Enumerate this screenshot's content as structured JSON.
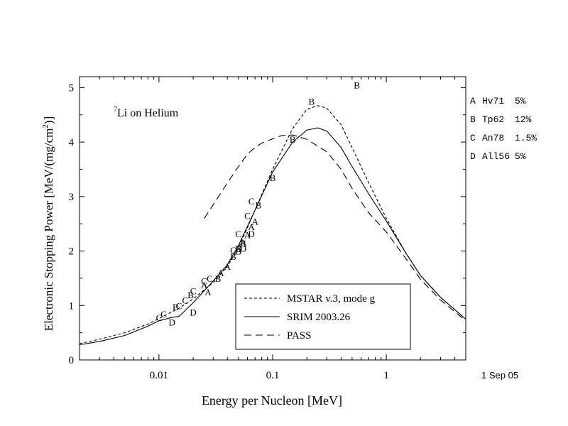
{
  "chart_data": {
    "type": "line",
    "title_parts": {
      "superscript": "7",
      "text": "Li on Helium"
    },
    "xlabel": "Energy per Nucleon [MeV]",
    "ylabel_parts": {
      "before": "Electronic Stopping Power [MeV/(mg/cm",
      "superscript": "2",
      "after": ")]"
    },
    "x_scale": "log",
    "xlim": [
      0.002,
      5
    ],
    "ylim": [
      0,
      5.2
    ],
    "x_ticks": [
      {
        "value": 0.01,
        "label": "0.01"
      },
      {
        "value": 0.1,
        "label": "0.1"
      },
      {
        "value": 1,
        "label": "1"
      }
    ],
    "y_ticks": [
      {
        "value": 0,
        "label": "0"
      },
      {
        "value": 1,
        "label": "1"
      },
      {
        "value": 2,
        "label": "2"
      },
      {
        "value": 3,
        "label": "3"
      },
      {
        "value": 4,
        "label": "4"
      },
      {
        "value": 5,
        "label": "5"
      }
    ],
    "date_stamp": "1 Sep 05",
    "series": [
      {
        "name": "MSTAR v.3, mode g",
        "dash": "short",
        "x": [
          0.002,
          0.003,
          0.005,
          0.008,
          0.01,
          0.015,
          0.02,
          0.03,
          0.04,
          0.05,
          0.07,
          0.1,
          0.15,
          0.2,
          0.25,
          0.3,
          0.4,
          0.5,
          0.7,
          1,
          1.5,
          2,
          3,
          5
        ],
        "y": [
          0.3,
          0.38,
          0.5,
          0.66,
          0.76,
          0.95,
          1.12,
          1.42,
          1.72,
          2.05,
          2.75,
          3.5,
          4.25,
          4.6,
          4.67,
          4.62,
          4.32,
          3.9,
          3.25,
          2.6,
          1.95,
          1.55,
          1.15,
          0.75
        ]
      },
      {
        "name": "SRIM 2003.26",
        "dash": "solid",
        "x": [
          0.002,
          0.003,
          0.005,
          0.008,
          0.01,
          0.013,
          0.015,
          0.02,
          0.03,
          0.04,
          0.05,
          0.07,
          0.1,
          0.15,
          0.2,
          0.25,
          0.3,
          0.4,
          0.5,
          0.7,
          1,
          1.5,
          2,
          3,
          5
        ],
        "y": [
          0.28,
          0.34,
          0.45,
          0.62,
          0.72,
          0.78,
          0.8,
          1.05,
          1.45,
          1.75,
          2.1,
          2.75,
          3.45,
          4.0,
          4.22,
          4.26,
          4.2,
          3.9,
          3.55,
          3.05,
          2.55,
          1.95,
          1.55,
          1.15,
          0.75
        ]
      },
      {
        "name": "PASS",
        "dash": "long",
        "x": [
          0.025,
          0.03,
          0.04,
          0.05,
          0.06,
          0.07,
          0.08,
          0.1,
          0.12,
          0.15,
          0.2,
          0.3,
          0.4,
          0.5,
          0.7,
          1,
          1.5,
          2,
          3,
          5
        ],
        "y": [
          2.6,
          2.85,
          3.25,
          3.55,
          3.78,
          3.9,
          3.98,
          4.06,
          4.12,
          4.13,
          4.05,
          3.82,
          3.5,
          3.15,
          2.7,
          2.35,
          1.85,
          1.48,
          1.1,
          0.72
        ]
      }
    ],
    "experimental": [
      {
        "label": "A",
        "reference": "Hv71",
        "uncertainty": "5%",
        "points": [
          [
            0.025,
            1.38
          ],
          [
            0.027,
            1.25
          ],
          [
            0.035,
            1.6
          ],
          [
            0.04,
            1.72
          ],
          [
            0.05,
            2.05
          ],
          [
            0.055,
            2.15
          ],
          [
            0.06,
            2.3
          ],
          [
            0.065,
            2.45
          ],
          [
            0.07,
            2.55
          ]
        ]
      },
      {
        "label": "B",
        "reference": "Tp62",
        "uncertainty": "12%",
        "points": [
          [
            0.014,
            0.98
          ],
          [
            0.019,
            1.2
          ],
          [
            0.033,
            1.5
          ],
          [
            0.045,
            1.9
          ],
          [
            0.05,
            2.0
          ],
          [
            0.055,
            2.15
          ],
          [
            0.075,
            2.85
          ],
          [
            0.1,
            3.35
          ],
          [
            0.15,
            4.05
          ],
          [
            0.22,
            4.75
          ],
          [
            0.55,
            5.05
          ]
        ]
      },
      {
        "label": "C",
        "reference": "An78",
        "uncertainty": "1.5%",
        "points": [
          [
            0.01,
            0.78
          ],
          [
            0.011,
            0.85
          ],
          [
            0.015,
            1.0
          ],
          [
            0.017,
            1.1
          ],
          [
            0.02,
            1.27
          ],
          [
            0.025,
            1.45
          ],
          [
            0.028,
            1.5
          ],
          [
            0.045,
            2.02
          ],
          [
            0.05,
            2.32
          ],
          [
            0.06,
            2.65
          ],
          [
            0.065,
            2.92
          ]
        ]
      },
      {
        "label": "D",
        "reference": "All56",
        "uncertainty": "5%",
        "points": [
          [
            0.013,
            0.7
          ],
          [
            0.02,
            0.88
          ],
          [
            0.05,
            2.05
          ],
          [
            0.055,
            2.05
          ],
          [
            0.065,
            2.32
          ]
        ]
      }
    ]
  }
}
